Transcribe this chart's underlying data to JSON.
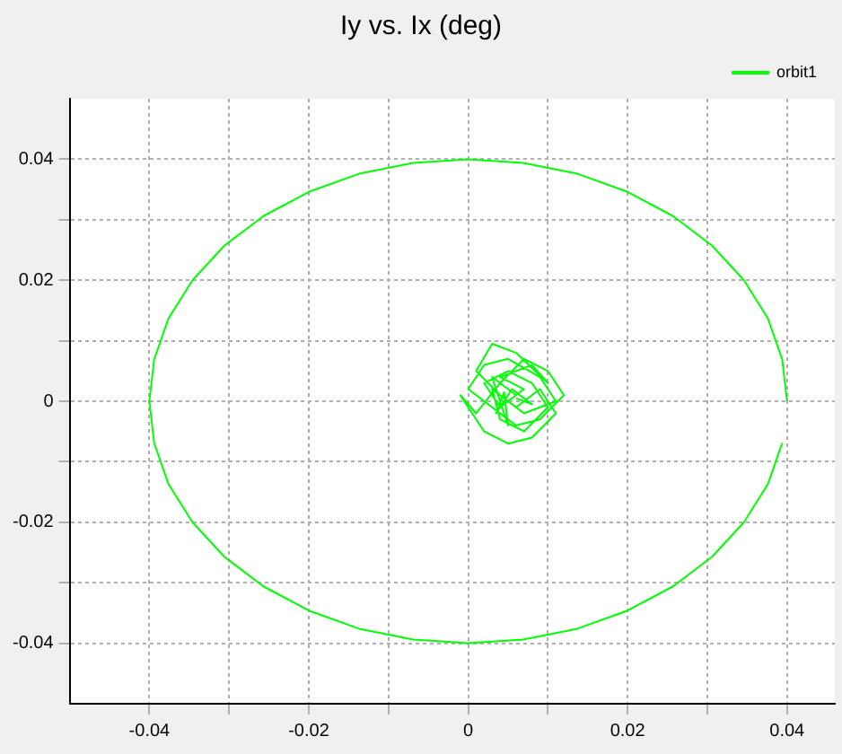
{
  "chart_data": {
    "type": "line",
    "title": "Iy vs. Ix (deg)",
    "marker": "none",
    "line_style": "solid",
    "grid": true,
    "legend": "top right",
    "xlim": [
      -0.05,
      0.046
    ],
    "ylim": [
      -0.05,
      0.05
    ],
    "xticks": [
      -0.04,
      {
        "value": -0.03,
        "label": null
      },
      -0.02,
      {
        "value": -0.01,
        "label": null
      },
      0,
      {
        "value": 0.01,
        "label": null
      },
      0.02,
      {
        "value": 0.03,
        "label": null
      },
      0.04
    ],
    "yticks": [
      -0.04,
      {
        "value": -0.03,
        "label": null
      },
      -0.02,
      {
        "value": -0.01,
        "label": null
      },
      0,
      {
        "value": 0.01,
        "label": null
      },
      0.02,
      {
        "value": 0.03,
        "label": null
      },
      0.04
    ],
    "series": [
      {
        "name": "orbit1",
        "color": "#00ff00",
        "x": [
          0.005,
          0.007,
          0.004,
          0.008,
          0.01,
          0.006,
          0.003,
          0.001,
          0.004,
          0.007,
          0.011,
          0.009,
          0.005,
          0.002,
          0,
          0.003,
          0.006,
          0.009,
          0.012,
          0.01,
          0.007,
          0.004,
          0.001,
          -0.001,
          0.002,
          0.005,
          0.008,
          0.011,
          0.009,
          0.006,
          0.003,
          0.004,
          0.007,
          0.01,
          0.008,
          0.005,
          0.002,
          0.004,
          0.006,
          0.003,
          0.005,
          0.0045,
          0.0035,
          0.0055,
          0.008,
          0.006
        ],
        "values": [
          0,
          0.002,
          0.004,
          0.006,
          0.003,
          0.008,
          0.0095,
          0.005,
          0.001,
          -0.002,
          0,
          0.004,
          0.007,
          0.006,
          0.002,
          -0.001,
          -0.004,
          -0.003,
          0.001,
          0.005,
          0.007,
          0.003,
          -0.002,
          0.001,
          -0.005,
          -0.007,
          -0.006,
          -0.002,
          0.002,
          -0.001,
          0.002,
          -0.003,
          -0.005,
          -0.001,
          0.003,
          0.005,
          0.003,
          -0.001,
          0.001,
          0.004,
          -0.004,
          0.0015,
          -0.002,
          0.002,
          -0.0005,
          0.0005
        ]
      },
      {
        "color": "#00ff00",
        "x": [
          0.04,
          0.0394,
          0.0376,
          0.0346,
          0.0306,
          0.0257,
          0.02,
          0.0137,
          0.0069,
          0,
          -0.0069,
          -0.0137,
          -0.02,
          -0.0257,
          -0.0306,
          -0.0346,
          -0.0376,
          -0.0394,
          -0.04,
          -0.0394,
          -0.0376,
          -0.0346,
          -0.0306,
          -0.0257,
          -0.02,
          -0.0137,
          -0.0069,
          0,
          0.0069,
          0.0137,
          0.02,
          0.0257,
          0.0306,
          0.0346,
          0.0376,
          0.0394
        ],
        "values": [
          0,
          0.0069,
          0.0137,
          0.02,
          0.0257,
          0.0306,
          0.0346,
          0.0376,
          0.0394,
          0.04,
          0.0394,
          0.0376,
          0.0346,
          0.0306,
          0.0257,
          0.02,
          0.0137,
          0.0069,
          0,
          -0.0069,
          -0.0137,
          -0.02,
          -0.0257,
          -0.0306,
          -0.0346,
          -0.0376,
          -0.0394,
          -0.04,
          -0.0394,
          -0.0376,
          -0.0346,
          -0.0306,
          -0.0257,
          -0.02,
          -0.0137,
          -0.0069
        ]
      }
    ]
  }
}
